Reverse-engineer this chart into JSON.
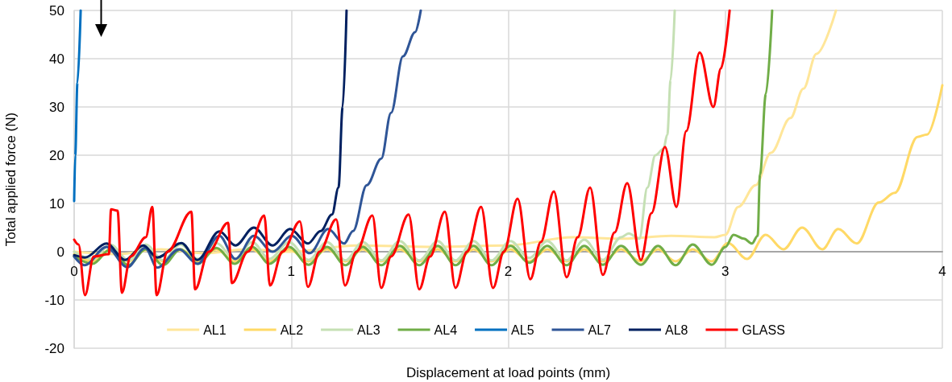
{
  "chart_data": {
    "type": "line",
    "xlabel": "Displacement at load points (mm)",
    "ylabel": "Total applied force (N)",
    "xlim": [
      0,
      4
    ],
    "xticks": [
      0,
      1,
      2,
      3,
      4
    ],
    "ylim": [
      -20,
      50
    ],
    "yticks": [
      -20,
      -10,
      0,
      10,
      20,
      30,
      40,
      50
    ],
    "grid": true,
    "legend": "bottom",
    "marker": "none",
    "line_style": "solid",
    "series": [
      {
        "name": "AL1",
        "color": "#ffe699",
        "x": [
          0,
          0.2,
          0.4,
          0.6,
          0.8,
          1.0,
          1.3,
          1.66,
          1.99,
          2.3,
          2.53,
          2.75,
          2.95,
          3.0,
          3.06,
          3.14,
          3.21,
          3.3,
          3.36,
          3.42,
          3.51
        ],
        "values": [
          0,
          -0.5,
          0.5,
          -0.3,
          0.5,
          0,
          1.3,
          1,
          1.3,
          3,
          2.7,
          3.3,
          3,
          3.5,
          9.3,
          13.8,
          20.5,
          27.7,
          33.8,
          41,
          50
        ]
      },
      {
        "name": "AL2",
        "color": "#ffd966",
        "x": [
          0,
          0.085,
          0.167,
          0.25,
          0.33,
          0.41,
          0.49,
          0.57,
          0.655,
          0.74,
          0.82,
          0.9,
          0.99,
          1.08,
          1.165,
          1.25,
          1.33,
          1.415,
          1.5,
          1.59,
          1.675,
          1.757,
          1.84,
          1.923,
          2.01,
          2.097,
          2.18,
          2.269,
          2.35,
          2.436,
          2.52,
          2.611,
          2.69,
          2.771,
          2.85,
          2.938,
          3.013,
          3.1,
          3.186,
          3.268,
          3.354,
          3.447,
          3.52,
          3.606,
          3.707,
          3.781,
          3.886,
          3.93,
          4.0
        ],
        "values": [
          -0.5,
          -2,
          0.5,
          -2,
          0.5,
          -2,
          0.5,
          -2,
          0.5,
          -2,
          0.5,
          -2,
          0.5,
          -2,
          0.5,
          -2,
          0.5,
          -2,
          0.5,
          -2,
          0.5,
          -2,
          0.5,
          -2,
          0.5,
          -2,
          0.5,
          -2,
          0.5,
          -2,
          0.5,
          -2,
          0.5,
          -2,
          0.5,
          -2,
          1.8,
          -1.5,
          3.5,
          0.5,
          5,
          0.5,
          4.7,
          1.7,
          10.2,
          12.2,
          23.8,
          24.3,
          34.5
        ]
      },
      {
        "name": "AL3",
        "color": "#c5e0b4",
        "x": [
          0,
          0.085,
          0.167,
          0.25,
          0.33,
          0.41,
          0.49,
          0.57,
          0.655,
          0.74,
          0.82,
          0.9,
          0.99,
          1.08,
          1.165,
          1.25,
          1.33,
          1.415,
          1.5,
          1.59,
          1.675,
          1.757,
          1.84,
          1.923,
          2.01,
          2.097,
          2.18,
          2.269,
          2.35,
          2.436,
          2.52,
          2.555,
          2.604,
          2.641,
          2.678,
          2.715,
          2.733,
          2.748,
          2.767
        ],
        "values": [
          0,
          -1.5,
          1.5,
          -1.8,
          1.5,
          -1.8,
          1.5,
          -1.5,
          1.8,
          -1.5,
          2,
          -1.5,
          2,
          -1.7,
          2,
          -1.8,
          2,
          -1.8,
          2.2,
          -1.8,
          2.2,
          -1.8,
          2.2,
          -1.8,
          2.2,
          -1.3,
          2.2,
          -1.8,
          2.5,
          -1.7,
          3,
          3.8,
          2.7,
          13.3,
          20,
          21.3,
          24.3,
          35.5,
          50
        ]
      },
      {
        "name": "AL4",
        "color": "#70ad47",
        "x": [
          0,
          0.085,
          0.167,
          0.25,
          0.33,
          0.41,
          0.49,
          0.57,
          0.655,
          0.74,
          0.82,
          0.9,
          0.99,
          1.08,
          1.165,
          1.25,
          1.33,
          1.415,
          1.5,
          1.59,
          1.675,
          1.757,
          1.84,
          1.923,
          2.01,
          2.097,
          2.18,
          2.269,
          2.35,
          2.436,
          2.52,
          2.611,
          2.69,
          2.771,
          2.85,
          2.938,
          3.001,
          3.038,
          3.086,
          3.123,
          3.149,
          3.16,
          3.187,
          3.216
        ],
        "values": [
          -1,
          -2.5,
          0.5,
          -2.8,
          0.5,
          -2.8,
          0.5,
          -2.5,
          0.8,
          -2.5,
          1,
          -2.5,
          1,
          -2.7,
          1,
          -2.8,
          1,
          -2.8,
          1.2,
          -2.8,
          1.2,
          -2.8,
          1.2,
          -2.8,
          1.2,
          -2.3,
          1.2,
          -2.8,
          1.2,
          -2.7,
          1.2,
          -2.7,
          1.2,
          -2.8,
          1.5,
          -2.7,
          1,
          3.5,
          2.7,
          1.7,
          3.3,
          16,
          32.7,
          50
        ]
      },
      {
        "name": "AL5",
        "color": "#0070c0",
        "x": [
          0,
          0.005,
          0.015,
          0.03
        ],
        "values": [
          10.5,
          20,
          35,
          50
        ]
      },
      {
        "name": "AL7",
        "color": "#2f5597",
        "x": [
          0,
          0.048,
          0.149,
          0.245,
          0.327,
          0.383,
          0.483,
          0.568,
          0.669,
          0.743,
          0.828,
          0.914,
          1.003,
          1.085,
          1.17,
          1.244,
          1.285,
          1.348,
          1.415,
          1.46,
          1.515,
          1.571,
          1.597
        ],
        "values": [
          -1,
          -2.8,
          1,
          -3.2,
          0.8,
          -3.3,
          0.5,
          -2.5,
          3.3,
          -1.5,
          3.3,
          0,
          3.3,
          -0.3,
          4.7,
          1.7,
          4.3,
          13.8,
          19.3,
          28.8,
          40.5,
          45.5,
          50
        ]
      },
      {
        "name": "AL8",
        "color": "#002060",
        "x": [
          0,
          0.05,
          0.149,
          0.234,
          0.319,
          0.383,
          0.494,
          0.568,
          0.669,
          0.743,
          0.828,
          0.914,
          0.995,
          1.077,
          1.136,
          1.188,
          1.218,
          1.237,
          1.255
        ],
        "values": [
          -0.7,
          -1.2,
          1.7,
          -1.7,
          1.3,
          -1.2,
          1.8,
          -1.7,
          4.2,
          1.3,
          5,
          1.3,
          4.7,
          1.7,
          4.3,
          7.7,
          13.3,
          30,
          50
        ]
      },
      {
        "name": "GLASS",
        "color": "#ff0000",
        "x": [
          0,
          0.02,
          0.05,
          0.09,
          0.16,
          0.17,
          0.2,
          0.22,
          0.26,
          0.33,
          0.36,
          0.38,
          0.43,
          0.54,
          0.557,
          0.62,
          0.709,
          0.727,
          0.8,
          0.876,
          0.902,
          0.96,
          1.04,
          1.077,
          1.13,
          1.207,
          1.248,
          1.3,
          1.374,
          1.415,
          1.46,
          1.541,
          1.59,
          1.64,
          1.708,
          1.757,
          1.81,
          1.875,
          1.93,
          1.98,
          2.043,
          2.102,
          2.15,
          2.21,
          2.269,
          2.32,
          2.377,
          2.436,
          2.49,
          2.548,
          2.611,
          2.66,
          2.722,
          2.775,
          2.82,
          2.882,
          2.945,
          2.98,
          3.02
        ],
        "values": [
          2.5,
          1.5,
          -9,
          -1,
          -0.5,
          8.8,
          8.5,
          -8.5,
          -1,
          3,
          9.3,
          -9,
          0,
          8.3,
          -7.8,
          0,
          6,
          -6.5,
          0,
          7.5,
          -7,
          0,
          6.3,
          -7.3,
          0,
          6.7,
          -7,
          0,
          7.5,
          -7.5,
          -1,
          7.7,
          -7.8,
          -1,
          8.3,
          -7.5,
          0,
          9.3,
          -7.5,
          0,
          11,
          -5.7,
          2,
          12.5,
          -5.3,
          3,
          13.3,
          -4.8,
          4,
          14.2,
          -1.7,
          8,
          21.7,
          9.3,
          25,
          41.3,
          30,
          38,
          50
        ]
      }
    ]
  }
}
